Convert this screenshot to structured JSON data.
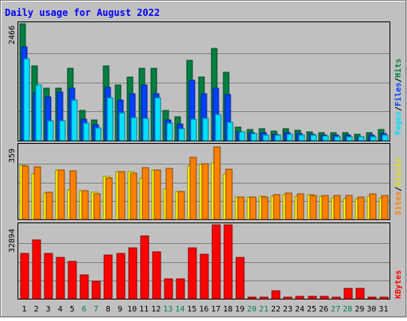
{
  "title": "Daily usage for August 2022",
  "colors": {
    "background": "#c0c0c0",
    "title": "#0000ff",
    "hits": "#008040",
    "files": "#0040ff",
    "pages": "#00e0ff",
    "visits": "#ffff00",
    "sites": "#ff8000",
    "kbytes": "#ff0000",
    "weekend_label": "#00805c"
  },
  "chart_data": [
    {
      "type": "bar",
      "name": "hits-files-pages",
      "categories": [
        "1",
        "2",
        "3",
        "4",
        "5",
        "6",
        "7",
        "8",
        "9",
        "10",
        "11",
        "12",
        "13",
        "14",
        "15",
        "16",
        "17",
        "18",
        "19",
        "20",
        "21",
        "22",
        "23",
        "24",
        "25",
        "26",
        "27",
        "28",
        "29",
        "30",
        "31"
      ],
      "y_max_label": "2466",
      "ylim": [
        0,
        2466
      ],
      "grid": true,
      "legend": [
        "Pages",
        "Files",
        "Hits"
      ],
      "series": [
        {
          "name": "Hits",
          "values": [
            2466,
            1580,
            1100,
            1100,
            1530,
            640,
            440,
            1580,
            1180,
            1350,
            1530,
            1530,
            640,
            500,
            1690,
            1350,
            1950,
            1450,
            290,
            240,
            260,
            200,
            250,
            210,
            190,
            170,
            170,
            160,
            140,
            170,
            230
          ]
        },
        {
          "name": "Files",
          "values": [
            1980,
            1000,
            920,
            1030,
            1100,
            450,
            330,
            1120,
            860,
            990,
            1180,
            990,
            430,
            350,
            1280,
            990,
            1100,
            980,
            180,
            160,
            170,
            140,
            160,
            150,
            130,
            120,
            120,
            110,
            90,
            120,
            150
          ]
        },
        {
          "name": "Pages",
          "values": [
            1720,
            1170,
            420,
            420,
            850,
            370,
            270,
            900,
            580,
            480,
            470,
            900,
            370,
            250,
            460,
            470,
            550,
            380,
            180,
            150,
            120,
            120,
            140,
            120,
            110,
            100,
            90,
            90,
            80,
            90,
            120
          ]
        }
      ]
    },
    {
      "type": "bar",
      "name": "visits-sites",
      "categories": [
        "1",
        "2",
        "3",
        "4",
        "5",
        "6",
        "7",
        "8",
        "9",
        "10",
        "11",
        "12",
        "13",
        "14",
        "15",
        "16",
        "17",
        "18",
        "19",
        "20",
        "21",
        "22",
        "23",
        "24",
        "25",
        "26",
        "27",
        "28",
        "29",
        "30",
        "31"
      ],
      "y_max_label": "359",
      "ylim": [
        0,
        359
      ],
      "grid": true,
      "legend": [
        "Sites",
        "Visits"
      ],
      "series": [
        {
          "name": "Visits",
          "values": [
            262,
            220,
            126,
            240,
            142,
            138,
            132,
            210,
            232,
            230,
            200,
            240,
            145,
            135,
            260,
            265,
            275,
            220,
            110,
            110,
            112,
            113,
            120,
            113,
            118,
            112,
            105,
            100,
            100,
            112,
            105
          ]
        },
        {
          "name": "Sites",
          "values": [
            260,
            255,
            130,
            240,
            237,
            138,
            125,
            200,
            232,
            225,
            252,
            238,
            247,
            135,
            300,
            272,
            350,
            244,
            110,
            110,
            110,
            120,
            127,
            125,
            115,
            114,
            115,
            115,
            110,
            125,
            115
          ]
        }
      ]
    },
    {
      "type": "bar",
      "name": "kbytes",
      "categories": [
        "1",
        "2",
        "3",
        "4",
        "5",
        "6",
        "7",
        "8",
        "9",
        "10",
        "11",
        "12",
        "13",
        "14",
        "15",
        "16",
        "17",
        "18",
        "19",
        "20",
        "21",
        "22",
        "23",
        "24",
        "25",
        "26",
        "27",
        "28",
        "29",
        "30",
        "31"
      ],
      "y_max_label": "32894",
      "ylim": [
        0,
        32894
      ],
      "grid": true,
      "legend": [
        "KBytes"
      ],
      "series": [
        {
          "name": "KBytes",
          "values": [
            20000,
            26000,
            20000,
            18500,
            16800,
            10700,
            7800,
            19300,
            20000,
            22500,
            28000,
            21000,
            8800,
            9000,
            22800,
            19800,
            32894,
            32894,
            18300,
            800,
            800,
            3400,
            800,
            1200,
            1200,
            900,
            800,
            4600,
            4600,
            800,
            800
          ]
        }
      ]
    }
  ]
}
